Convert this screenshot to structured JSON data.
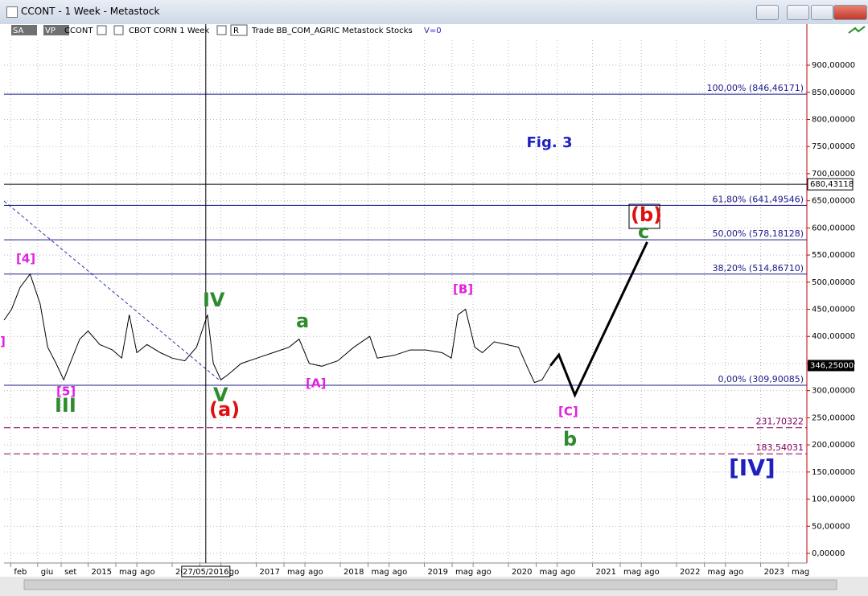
{
  "window": {
    "title": "CCONT - 1 Week - Metastock"
  },
  "toolbar": {
    "items": [
      "SA",
      "VP",
      "CCONT",
      "CBOT CORN  1 Week",
      "R",
      "Trade  BB_COM_AGRIC  Metastock  Stocks",
      "V=0"
    ]
  },
  "chart_data": {
    "type": "line",
    "title": "Fig. 3",
    "xlim": [
      2014.0,
      2023.54
    ],
    "ylim": [
      0,
      963
    ],
    "grid": true,
    "xticks": [
      {
        "value": 2014.08,
        "label": "feb"
      },
      {
        "value": 2014.4,
        "label": "giu"
      },
      {
        "value": 2014.68,
        "label": "set"
      },
      {
        "value": 2015.0,
        "label": "2015"
      },
      {
        "value": 2015.33,
        "label": "mag"
      },
      {
        "value": 2015.58,
        "label": "ago"
      },
      {
        "value": 2016.0,
        "label": "2016"
      },
      {
        "value": 2016.33,
        "label": "mag"
      },
      {
        "value": 2016.58,
        "label": "ago"
      },
      {
        "value": 2017.0,
        "label": "2017"
      },
      {
        "value": 2017.33,
        "label": "mag"
      },
      {
        "value": 2017.58,
        "label": "ago"
      },
      {
        "value": 2018.0,
        "label": "2018"
      },
      {
        "value": 2018.33,
        "label": "mag"
      },
      {
        "value": 2018.58,
        "label": "ago"
      },
      {
        "value": 2019.0,
        "label": "2019"
      },
      {
        "value": 2019.33,
        "label": "mag"
      },
      {
        "value": 2019.58,
        "label": "ago"
      },
      {
        "value": 2020.0,
        "label": "2020"
      },
      {
        "value": 2020.33,
        "label": "mag"
      },
      {
        "value": 2020.58,
        "label": "ago"
      },
      {
        "value": 2021.0,
        "label": "2021"
      },
      {
        "value": 2021.33,
        "label": "mag"
      },
      {
        "value": 2021.58,
        "label": "ago"
      },
      {
        "value": 2022.0,
        "label": "2022"
      },
      {
        "value": 2022.33,
        "label": "mag"
      },
      {
        "value": 2022.58,
        "label": "ago"
      },
      {
        "value": 2023.0,
        "label": "2023"
      },
      {
        "value": 2023.33,
        "label": "mag"
      }
    ],
    "yticks": [
      {
        "value": 0,
        "label": "0,00000"
      },
      {
        "value": 50,
        "label": "50,00000"
      },
      {
        "value": 100,
        "label": "100,00000"
      },
      {
        "value": 150,
        "label": "150,00000"
      },
      {
        "value": 200,
        "label": "200,00000"
      },
      {
        "value": 250,
        "label": "250,00000"
      },
      {
        "value": 300,
        "label": "300,00000"
      },
      {
        "value": 350,
        "label": "350,00000"
      },
      {
        "value": 400,
        "label": "400,00000"
      },
      {
        "value": 450,
        "label": "450,00000"
      },
      {
        "value": 500,
        "label": "500,00000"
      },
      {
        "value": 550,
        "label": "550,00000"
      },
      {
        "value": 600,
        "label": "600,00000"
      },
      {
        "value": 650,
        "label": "650,00000"
      },
      {
        "value": 700,
        "label": "700,00000"
      },
      {
        "value": 750,
        "label": "750,00000"
      },
      {
        "value": 800,
        "label": "800,00000"
      },
      {
        "value": 850,
        "label": "850,00000"
      },
      {
        "value": 900,
        "label": "900,00000"
      }
    ],
    "series": [
      {
        "color": "#000000",
        "width": 1,
        "x": [
          2014.0,
          2014.09,
          2014.19,
          2014.31,
          2014.43,
          2014.52,
          2014.62,
          2014.71,
          2014.81,
          2014.9,
          2015.0,
          2015.14,
          2015.29,
          2015.4,
          2015.49,
          2015.58,
          2015.7,
          2015.86,
          2016.0,
          2016.15,
          2016.29,
          2016.42,
          2016.49,
          2016.58,
          2016.67,
          2016.82,
          2017.01,
          2017.2,
          2017.39,
          2017.51,
          2017.63,
          2017.78,
          2017.97,
          2018.16,
          2018.35,
          2018.44,
          2018.64,
          2018.83,
          2019.02,
          2019.21,
          2019.32,
          2019.4,
          2019.49,
          2019.6,
          2019.69,
          2019.83,
          2019.98,
          2020.12,
          2020.22,
          2020.31,
          2020.4,
          2020.5
        ],
        "values": [
          430,
          450,
          490,
          515,
          460,
          380,
          350,
          320,
          360,
          395,
          410,
          385,
          375,
          360,
          440,
          370,
          385,
          370,
          360,
          355,
          380,
          440,
          350,
          320,
          330,
          350,
          360,
          370,
          380,
          395,
          350,
          345,
          355,
          380,
          400,
          360,
          365,
          375,
          375,
          370,
          360,
          440,
          450,
          380,
          370,
          390,
          385,
          380,
          345,
          315,
          320,
          346.25
        ]
      },
      {
        "color": "#000000",
        "width": 3,
        "x": [
          2020.5,
          2020.6,
          2020.79,
          2021.65
        ],
        "values": [
          346.25,
          366,
          292,
          574
        ]
      }
    ],
    "levels": [
      {
        "value": 846.46171,
        "label": "100,00% (846,46171)",
        "color": "#1a1a8c",
        "dash": false
      },
      {
        "value": 641.49546,
        "label": "61,80% (641,49546)",
        "color": "#1a1a8c",
        "dash": false
      },
      {
        "value": 578.18128,
        "label": "50,00% (578,18128)",
        "color": "#1a1a8c",
        "dash": false
      },
      {
        "value": 514.8671,
        "label": "38,20% (514,86710)",
        "color": "#1a1a8c",
        "dash": false
      },
      {
        "value": 309.90085,
        "label": "0,00% (309,90085)",
        "color": "#1a1a8c",
        "dash": false
      },
      {
        "value": 231.70322,
        "label": "231,70322",
        "color": "#800060",
        "dash": true
      },
      {
        "value": 183.54031,
        "label": "183,54031",
        "color": "#800060",
        "dash": true
      }
    ],
    "hline": {
      "value": 680.43118,
      "label": "680,43118",
      "color": "#000000"
    },
    "last_price": {
      "value": 346.25,
      "label": "346,25000"
    },
    "cursor": {
      "value": 2016.4,
      "label": "27/05/2016"
    },
    "annotations": [
      {
        "text": "]",
        "color": "#e020e0"
      },
      {
        "text": "[4]",
        "color": "#e020e0"
      },
      {
        "text": "[5]",
        "color": "#e020e0"
      },
      {
        "text": "III",
        "color": "#2e8b2e"
      },
      {
        "text": "IV",
        "color": "#2e8b2e"
      },
      {
        "text": "V",
        "color": "#2e8b2e"
      },
      {
        "text": "(a)",
        "color": "#e01010"
      },
      {
        "text": "a",
        "color": "#2e8b2e"
      },
      {
        "text": "[A]",
        "color": "#e020e0"
      },
      {
        "text": "[B]",
        "color": "#e020e0"
      },
      {
        "text": "[C]",
        "color": "#e020e0"
      },
      {
        "text": "b",
        "color": "#2e8b2e"
      },
      {
        "text": "(b)",
        "color": "#e01010"
      },
      {
        "text": "c",
        "color": "#2e8b2e"
      },
      {
        "text": "[IV]",
        "color": "#2020c0"
      }
    ]
  }
}
